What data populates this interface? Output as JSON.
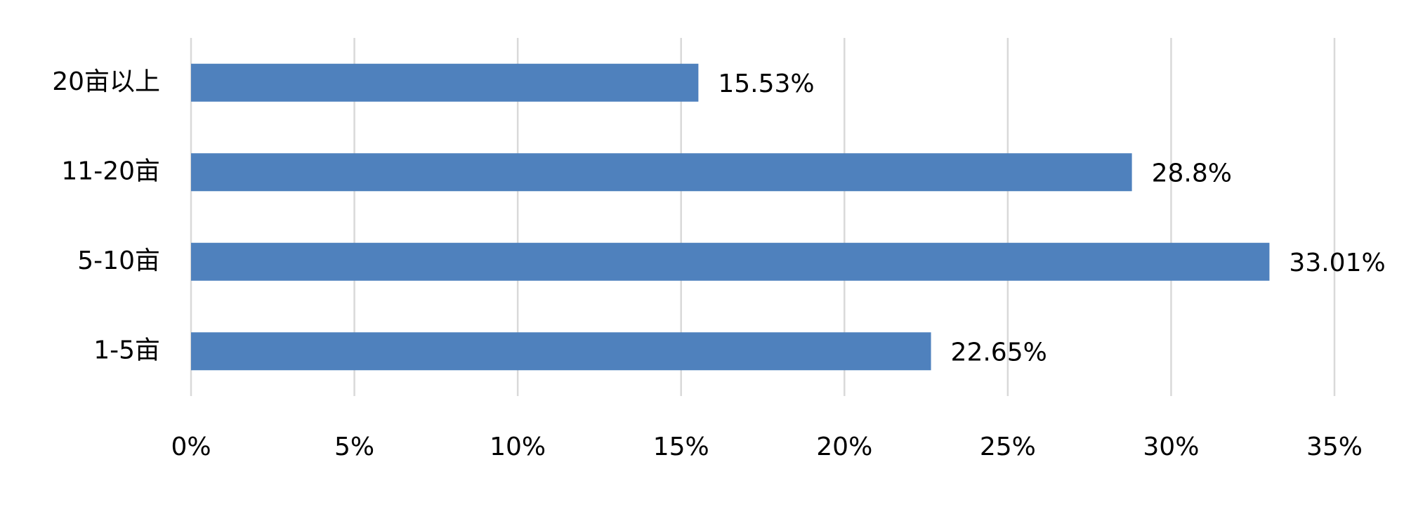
{
  "chart_data": {
    "type": "bar",
    "orientation": "horizontal",
    "categories": [
      "20亩以上",
      "11-20亩",
      "5-10亩",
      "1-5亩"
    ],
    "values": [
      15.53,
      28.8,
      33.01,
      22.65
    ],
    "value_labels": [
      "15.53%",
      "28.8%",
      "33.01%",
      "22.65%"
    ],
    "color": "#4f81bd",
    "xlim": [
      0,
      35
    ],
    "xticks": [
      {
        "value": 0,
        "label": "0%"
      },
      {
        "value": 5,
        "label": "5%"
      },
      {
        "value": 10,
        "label": "10%"
      },
      {
        "value": 15,
        "label": "15%"
      },
      {
        "value": 20,
        "label": "20%"
      },
      {
        "value": 25,
        "label": "25%"
      },
      {
        "value": 30,
        "label": "30%"
      },
      {
        "value": 35,
        "label": "35%"
      }
    ],
    "grid": true
  }
}
